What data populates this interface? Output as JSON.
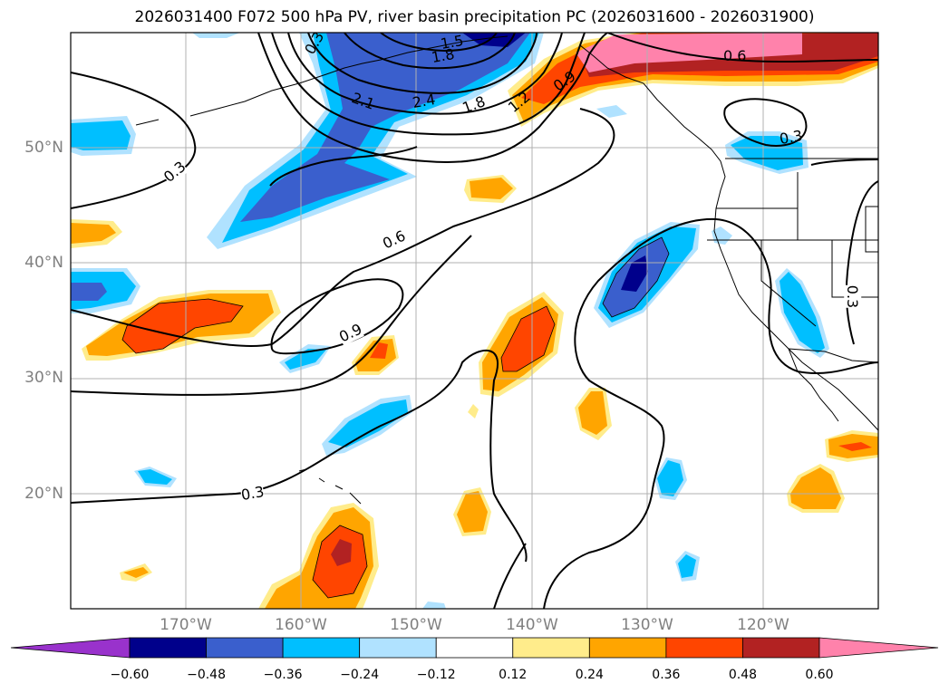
{
  "title": "2026031400 F072 500 hPa PV, river basin precipitation PC (2026031600 - 2026031900)",
  "map": {
    "lon_range": [
      -180,
      -110
    ],
    "lat_range": [
      10,
      60
    ],
    "lat_labels": [
      "20°N",
      "30°N",
      "40°N",
      "50°N"
    ],
    "lon_labels": [
      "170°W",
      "160°W",
      "150°W",
      "140°W",
      "130°W",
      "120°W"
    ],
    "contour_labels": [
      "0.3",
      "0.6",
      "0.9",
      "0.3",
      "0.3",
      "0.3",
      "0.6",
      "0.9",
      "1.2",
      "1.5",
      "1.8",
      "2.1",
      "2.4",
      "1.8",
      "0.3"
    ]
  },
  "colorbar": {
    "ticks": [
      "−0.60",
      "−0.48",
      "−0.36",
      "−0.24",
      "−0.12",
      "0.12",
      "0.24",
      "0.36",
      "0.48",
      "0.60"
    ],
    "colors": [
      "#9932cc",
      "#00008b",
      "#3a5fcd",
      "#00bfff",
      "#b0e2ff",
      "#ffffff",
      "#ffec8b",
      "#ffa500",
      "#ff4500",
      "#b22222",
      "#ff82ab"
    ]
  }
}
